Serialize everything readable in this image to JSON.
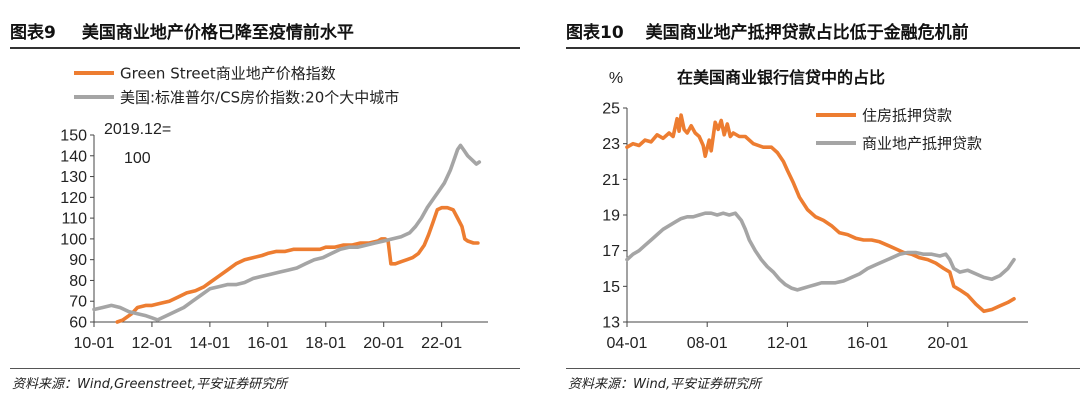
{
  "left": {
    "fig_num": "图表9",
    "fig_title": "美国商业地产价格已降至疫情前水平",
    "source": "资料来源：Wind,Greenstreet,平安证券研究所",
    "chart_data": {
      "type": "line",
      "title": "",
      "annotation_line1": "2019.12=",
      "annotation_line2": "100",
      "ylim": [
        60,
        150
      ],
      "yticks": [
        "60",
        "70",
        "80",
        "90",
        "100",
        "110",
        "120",
        "130",
        "140",
        "150"
      ],
      "xlim": [
        2010.0,
        2023.6
      ],
      "xticks": [
        {
          "label": "10-01",
          "x": 2010.0
        },
        {
          "label": "12-01",
          "x": 2012.0
        },
        {
          "label": "14-01",
          "x": 2014.0
        },
        {
          "label": "16-01",
          "x": 2016.0
        },
        {
          "label": "18-01",
          "x": 2018.0
        },
        {
          "label": "20-01",
          "x": 2020.0
        },
        {
          "label": "22-01",
          "x": 2022.0
        }
      ],
      "series": [
        {
          "name": "Green Street商业地产价格指数",
          "color": "#ED7D31",
          "points": [
            [
              2010.8,
              60
            ],
            [
              2011.0,
              61
            ],
            [
              2011.3,
              64
            ],
            [
              2011.5,
              67
            ],
            [
              2011.8,
              68
            ],
            [
              2012.0,
              68
            ],
            [
              2012.3,
              69
            ],
            [
              2012.6,
              70
            ],
            [
              2012.9,
              72
            ],
            [
              2013.2,
              74
            ],
            [
              2013.5,
              75
            ],
            [
              2013.8,
              77
            ],
            [
              2014.0,
              79
            ],
            [
              2014.3,
              82
            ],
            [
              2014.6,
              85
            ],
            [
              2014.9,
              88
            ],
            [
              2015.2,
              90
            ],
            [
              2015.5,
              91
            ],
            [
              2015.8,
              92
            ],
            [
              2016.0,
              93
            ],
            [
              2016.3,
              94
            ],
            [
              2016.6,
              94
            ],
            [
              2016.9,
              95
            ],
            [
              2017.2,
              95
            ],
            [
              2017.5,
              95
            ],
            [
              2017.8,
              95
            ],
            [
              2018.0,
              96
            ],
            [
              2018.3,
              96
            ],
            [
              2018.6,
              97
            ],
            [
              2018.9,
              97
            ],
            [
              2019.2,
              98
            ],
            [
              2019.5,
              98
            ],
            [
              2019.8,
              99
            ],
            [
              2019.92,
              100
            ],
            [
              2020.05,
              100
            ],
            [
              2020.15,
              99
            ],
            [
              2020.25,
              88
            ],
            [
              2020.4,
              88
            ],
            [
              2020.6,
              89
            ],
            [
              2020.8,
              90
            ],
            [
              2021.0,
              91
            ],
            [
              2021.2,
              93
            ],
            [
              2021.4,
              97
            ],
            [
              2021.55,
              102
            ],
            [
              2021.7,
              108
            ],
            [
              2021.85,
              114
            ],
            [
              2022.0,
              115
            ],
            [
              2022.2,
              115
            ],
            [
              2022.4,
              114
            ],
            [
              2022.55,
              110
            ],
            [
              2022.7,
              106
            ],
            [
              2022.8,
              100
            ],
            [
              2022.9,
              99
            ],
            [
              2023.1,
              98
            ],
            [
              2023.25,
              98
            ]
          ]
        },
        {
          "name": "美国:标准普尔/CS房价指数:20个大中城市",
          "color": "#A5A5A5",
          "points": [
            [
              2010.0,
              66
            ],
            [
              2010.3,
              67
            ],
            [
              2010.6,
              68
            ],
            [
              2010.9,
              67
            ],
            [
              2011.2,
              65
            ],
            [
              2011.5,
              64
            ],
            [
              2011.8,
              63
            ],
            [
              2012.0,
              62
            ],
            [
              2012.2,
              61
            ],
            [
              2012.5,
              63
            ],
            [
              2012.8,
              65
            ],
            [
              2013.1,
              67
            ],
            [
              2013.4,
              70
            ],
            [
              2013.7,
              73
            ],
            [
              2014.0,
              76
            ],
            [
              2014.3,
              77
            ],
            [
              2014.6,
              78
            ],
            [
              2014.9,
              78
            ],
            [
              2015.2,
              79
            ],
            [
              2015.5,
              81
            ],
            [
              2015.8,
              82
            ],
            [
              2016.1,
              83
            ],
            [
              2016.4,
              84
            ],
            [
              2016.7,
              85
            ],
            [
              2017.0,
              86
            ],
            [
              2017.3,
              88
            ],
            [
              2017.6,
              90
            ],
            [
              2017.9,
              91
            ],
            [
              2018.2,
              93
            ],
            [
              2018.5,
              95
            ],
            [
              2018.8,
              96
            ],
            [
              2019.1,
              96
            ],
            [
              2019.4,
              97
            ],
            [
              2019.7,
              98
            ],
            [
              2020.0,
              99
            ],
            [
              2020.3,
              100
            ],
            [
              2020.6,
              101
            ],
            [
              2020.9,
              103
            ],
            [
              2021.1,
              106
            ],
            [
              2021.3,
              110
            ],
            [
              2021.5,
              115
            ],
            [
              2021.7,
              119
            ],
            [
              2021.9,
              123
            ],
            [
              2022.1,
              127
            ],
            [
              2022.3,
              133
            ],
            [
              2022.45,
              139
            ],
            [
              2022.55,
              143
            ],
            [
              2022.65,
              145
            ],
            [
              2022.75,
              143
            ],
            [
              2022.9,
              140
            ],
            [
              2023.05,
              138
            ],
            [
              2023.2,
              136
            ],
            [
              2023.3,
              137
            ]
          ]
        }
      ]
    }
  },
  "right": {
    "fig_num": "图表10",
    "fig_title": "美国商业地产抵押贷款占比低于金融危机前",
    "source": "资料来源：Wind,平安证券研究所",
    "chart_data": {
      "type": "line",
      "title": "在美国商业银行信贷中的占比",
      "ylabel": "%",
      "ylim": [
        13,
        25
      ],
      "yticks": [
        "13",
        "15",
        "17",
        "19",
        "21",
        "23",
        "25"
      ],
      "xlim": [
        2004.0,
        2024.0
      ],
      "xticks": [
        {
          "label": "04-01",
          "x": 2004.0
        },
        {
          "label": "08-01",
          "x": 2008.0
        },
        {
          "label": "12-01",
          "x": 2012.0
        },
        {
          "label": "16-01",
          "x": 2016.0
        },
        {
          "label": "20-01",
          "x": 2020.0
        }
      ],
      "series": [
        {
          "name": "住房抵押贷款",
          "color": "#ED7D31",
          "points": [
            [
              2004.0,
              22.8
            ],
            [
              2004.3,
              23.0
            ],
            [
              2004.6,
              22.9
            ],
            [
              2004.9,
              23.2
            ],
            [
              2005.2,
              23.1
            ],
            [
              2005.5,
              23.5
            ],
            [
              2005.8,
              23.3
            ],
            [
              2006.1,
              23.6
            ],
            [
              2006.3,
              23.4
            ],
            [
              2006.5,
              24.4
            ],
            [
              2006.6,
              23.7
            ],
            [
              2006.7,
              24.6
            ],
            [
              2006.85,
              23.8
            ],
            [
              2007.0,
              23.6
            ],
            [
              2007.2,
              24.0
            ],
            [
              2007.4,
              23.6
            ],
            [
              2007.6,
              23.4
            ],
            [
              2007.8,
              22.9
            ],
            [
              2007.9,
              22.3
            ],
            [
              2008.1,
              23.2
            ],
            [
              2008.2,
              22.6
            ],
            [
              2008.4,
              24.2
            ],
            [
              2008.55,
              23.8
            ],
            [
              2008.7,
              24.3
            ],
            [
              2008.85,
              23.5
            ],
            [
              2009.0,
              24.1
            ],
            [
              2009.15,
              23.4
            ],
            [
              2009.3,
              23.6
            ],
            [
              2009.6,
              23.4
            ],
            [
              2009.9,
              23.4
            ],
            [
              2010.3,
              23.0
            ],
            [
              2010.8,
              22.8
            ],
            [
              2011.2,
              22.8
            ],
            [
              2011.5,
              22.5
            ],
            [
              2011.8,
              22.0
            ],
            [
              2012.0,
              21.5
            ],
            [
              2012.3,
              20.8
            ],
            [
              2012.6,
              20.0
            ],
            [
              2013.0,
              19.3
            ],
            [
              2013.4,
              18.9
            ],
            [
              2013.8,
              18.7
            ],
            [
              2014.2,
              18.4
            ],
            [
              2014.6,
              18.0
            ],
            [
              2015.0,
              17.9
            ],
            [
              2015.4,
              17.7
            ],
            [
              2015.8,
              17.6
            ],
            [
              2016.2,
              17.6
            ],
            [
              2016.6,
              17.5
            ],
            [
              2017.0,
              17.3
            ],
            [
              2017.4,
              17.1
            ],
            [
              2017.8,
              16.9
            ],
            [
              2018.2,
              16.8
            ],
            [
              2018.6,
              16.6
            ],
            [
              2019.0,
              16.5
            ],
            [
              2019.4,
              16.3
            ],
            [
              2019.8,
              16.0
            ],
            [
              2020.1,
              15.8
            ],
            [
              2020.3,
              15.0
            ],
            [
              2020.6,
              14.8
            ],
            [
              2021.0,
              14.5
            ],
            [
              2021.4,
              14.0
            ],
            [
              2021.8,
              13.6
            ],
            [
              2022.2,
              13.7
            ],
            [
              2022.6,
              13.9
            ],
            [
              2023.0,
              14.1
            ],
            [
              2023.3,
              14.3
            ]
          ]
        },
        {
          "name": "商业地产抵押贷款",
          "color": "#A5A5A5",
          "points": [
            [
              2004.0,
              16.5
            ],
            [
              2004.3,
              16.8
            ],
            [
              2004.6,
              17.0
            ],
            [
              2004.9,
              17.3
            ],
            [
              2005.2,
              17.6
            ],
            [
              2005.5,
              17.9
            ],
            [
              2005.8,
              18.2
            ],
            [
              2006.1,
              18.4
            ],
            [
              2006.4,
              18.6
            ],
            [
              2006.7,
              18.8
            ],
            [
              2007.0,
              18.9
            ],
            [
              2007.3,
              18.9
            ],
            [
              2007.6,
              19.0
            ],
            [
              2007.9,
              19.1
            ],
            [
              2008.2,
              19.1
            ],
            [
              2008.5,
              19.0
            ],
            [
              2008.8,
              19.1
            ],
            [
              2009.1,
              19.0
            ],
            [
              2009.4,
              19.1
            ],
            [
              2009.7,
              18.7
            ],
            [
              2009.9,
              18.2
            ],
            [
              2010.1,
              17.6
            ],
            [
              2010.4,
              17.0
            ],
            [
              2010.7,
              16.5
            ],
            [
              2011.0,
              16.1
            ],
            [
              2011.3,
              15.8
            ],
            [
              2011.6,
              15.4
            ],
            [
              2011.9,
              15.1
            ],
            [
              2012.2,
              14.9
            ],
            [
              2012.5,
              14.8
            ],
            [
              2012.8,
              14.9
            ],
            [
              2013.1,
              15.0
            ],
            [
              2013.4,
              15.1
            ],
            [
              2013.7,
              15.2
            ],
            [
              2014.0,
              15.2
            ],
            [
              2014.4,
              15.2
            ],
            [
              2014.8,
              15.3
            ],
            [
              2015.2,
              15.5
            ],
            [
              2015.6,
              15.7
            ],
            [
              2016.0,
              16.0
            ],
            [
              2016.4,
              16.2
            ],
            [
              2016.8,
              16.4
            ],
            [
              2017.2,
              16.6
            ],
            [
              2017.6,
              16.8
            ],
            [
              2018.0,
              16.9
            ],
            [
              2018.4,
              16.9
            ],
            [
              2018.8,
              16.8
            ],
            [
              2019.2,
              16.8
            ],
            [
              2019.6,
              16.7
            ],
            [
              2019.9,
              16.8
            ],
            [
              2020.1,
              16.5
            ],
            [
              2020.3,
              16.0
            ],
            [
              2020.6,
              15.8
            ],
            [
              2021.0,
              15.9
            ],
            [
              2021.4,
              15.7
            ],
            [
              2021.8,
              15.5
            ],
            [
              2022.2,
              15.4
            ],
            [
              2022.6,
              15.6
            ],
            [
              2023.0,
              16.0
            ],
            [
              2023.3,
              16.5
            ]
          ]
        }
      ]
    }
  }
}
